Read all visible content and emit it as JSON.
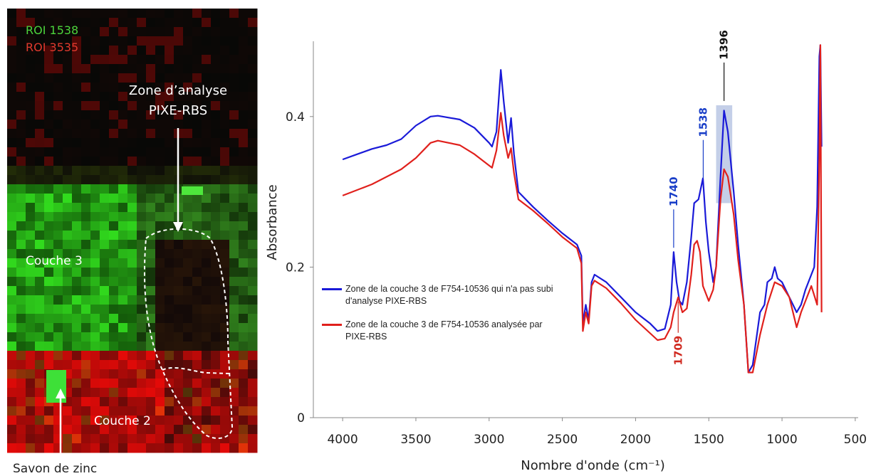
{
  "image_panel": {
    "roi_legend": [
      {
        "text": "ROI 1538",
        "color": "#4cd43c"
      },
      {
        "text": "ROI 3535",
        "color": "#e03a2e"
      }
    ],
    "zone_label": [
      "Zone d’analyse",
      "PIXE-RBS"
    ],
    "layer_3": "Couche 3",
    "layer_2": "Couche 2",
    "zinc_soap": "Savon de zinc"
  },
  "chart_data": {
    "type": "line",
    "xlabel": "Nombre d'onde (cm⁻¹)",
    "ylabel": "Absorbance",
    "xlim": [
      4200,
      480
    ],
    "ylim": [
      0,
      0.5
    ],
    "xticks": [
      4000,
      3500,
      3000,
      2500,
      2000,
      1500,
      1000,
      500
    ],
    "yticks": [
      0,
      0.2,
      0.4
    ],
    "grid": false,
    "legend_position": "center-left",
    "series": [
      {
        "name": "Zone de la couche 3 de F754-10536 qui n'a pas subi d'analyse PIXE-RBS",
        "color": "#1a1ad8",
        "x": [
          4000,
          3900,
          3800,
          3700,
          3600,
          3500,
          3400,
          3350,
          3200,
          3100,
          3000,
          2980,
          2950,
          2920,
          2900,
          2870,
          2850,
          2830,
          2800,
          2700,
          2600,
          2500,
          2400,
          2370,
          2360,
          2340,
          2320,
          2300,
          2280,
          2200,
          2100,
          2000,
          1900,
          1850,
          1800,
          1760,
          1740,
          1720,
          1700,
          1680,
          1650,
          1620,
          1600,
          1570,
          1540,
          1520,
          1500,
          1470,
          1450,
          1420,
          1396,
          1370,
          1330,
          1300,
          1260,
          1230,
          1200,
          1150,
          1120,
          1100,
          1070,
          1050,
          1030,
          1000,
          950,
          900,
          870,
          840,
          800,
          780,
          760,
          745,
          738,
          730
        ],
        "values": [
          0.343,
          0.35,
          0.357,
          0.362,
          0.37,
          0.388,
          0.4,
          0.401,
          0.396,
          0.385,
          0.365,
          0.36,
          0.38,
          0.462,
          0.42,
          0.365,
          0.398,
          0.35,
          0.3,
          0.28,
          0.262,
          0.245,
          0.23,
          0.215,
          0.125,
          0.15,
          0.13,
          0.18,
          0.19,
          0.18,
          0.16,
          0.14,
          0.125,
          0.115,
          0.118,
          0.15,
          0.22,
          0.18,
          0.155,
          0.15,
          0.18,
          0.24,
          0.285,
          0.29,
          0.318,
          0.26,
          0.22,
          0.18,
          0.2,
          0.32,
          0.408,
          0.38,
          0.3,
          0.23,
          0.15,
          0.06,
          0.07,
          0.14,
          0.15,
          0.18,
          0.185,
          0.2,
          0.185,
          0.18,
          0.16,
          0.14,
          0.15,
          0.17,
          0.19,
          0.2,
          0.28,
          0.48,
          0.495,
          0.36
        ]
      },
      {
        "name": "Zone de la couche 3 de F754-10536 analysée par PIXE-RBS",
        "color": "#e0201c",
        "x": [
          4000,
          3800,
          3600,
          3500,
          3400,
          3350,
          3200,
          3100,
          3000,
          2980,
          2950,
          2920,
          2900,
          2870,
          2850,
          2830,
          2800,
          2700,
          2600,
          2500,
          2400,
          2370,
          2360,
          2340,
          2320,
          2300,
          2280,
          2200,
          2100,
          2000,
          1900,
          1850,
          1800,
          1760,
          1740,
          1709,
          1680,
          1650,
          1620,
          1600,
          1580,
          1560,
          1540,
          1500,
          1470,
          1450,
          1420,
          1396,
          1370,
          1330,
          1300,
          1260,
          1230,
          1200,
          1150,
          1100,
          1050,
          1000,
          950,
          900,
          870,
          840,
          800,
          760,
          745,
          738,
          730
        ],
        "values": [
          0.295,
          0.31,
          0.33,
          0.345,
          0.365,
          0.368,
          0.362,
          0.35,
          0.335,
          0.332,
          0.355,
          0.405,
          0.375,
          0.345,
          0.358,
          0.325,
          0.29,
          0.275,
          0.258,
          0.24,
          0.225,
          0.205,
          0.115,
          0.14,
          0.125,
          0.175,
          0.182,
          0.172,
          0.152,
          0.13,
          0.112,
          0.103,
          0.105,
          0.12,
          0.14,
          0.16,
          0.14,
          0.145,
          0.19,
          0.23,
          0.235,
          0.22,
          0.175,
          0.155,
          0.17,
          0.2,
          0.29,
          0.33,
          0.32,
          0.27,
          0.21,
          0.15,
          0.06,
          0.06,
          0.11,
          0.15,
          0.18,
          0.175,
          0.16,
          0.12,
          0.14,
          0.155,
          0.175,
          0.15,
          0.35,
          0.495,
          0.14
        ]
      }
    ],
    "annotations": [
      {
        "text": "1740",
        "x": 1740,
        "color": "#1a3fc8",
        "side": "above"
      },
      {
        "text": "1538",
        "x": 1538,
        "color": "#1a3fc8",
        "side": "above"
      },
      {
        "text": "1396",
        "x": 1396,
        "color": "#111111",
        "side": "above"
      },
      {
        "text": "1709",
        "x": 1709,
        "color": "#d02a20",
        "side": "below"
      }
    ],
    "highlight": {
      "x": [
        1450,
        1340
      ],
      "y": [
        0.285,
        0.415
      ],
      "color": "#c4cfe8"
    }
  }
}
